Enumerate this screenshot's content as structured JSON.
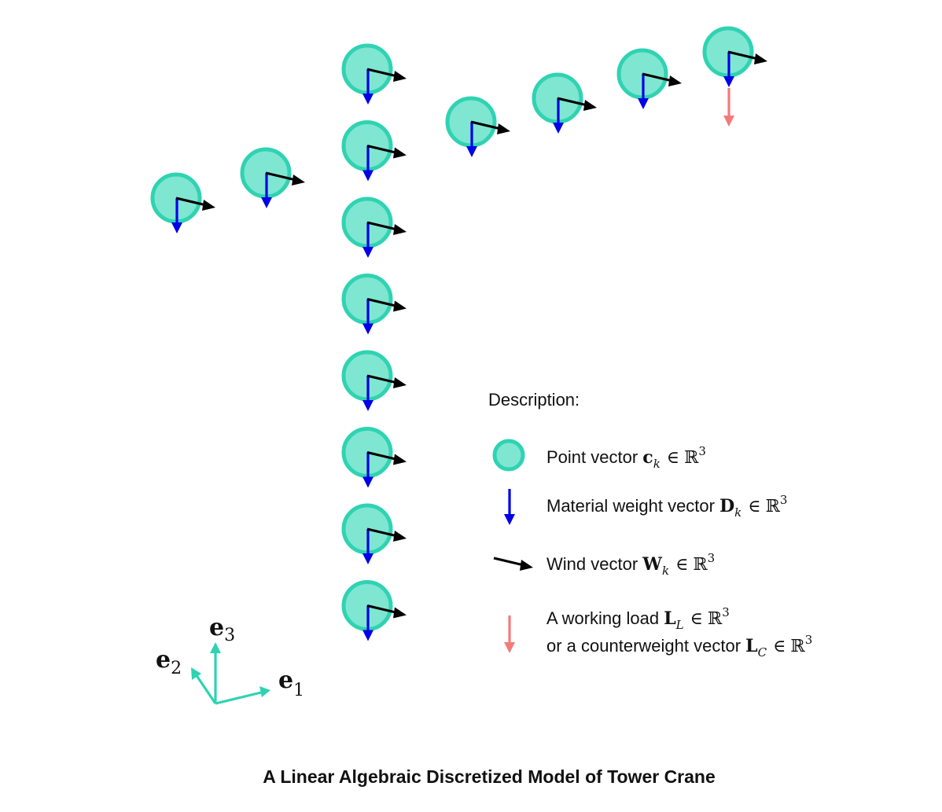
{
  "title": "A Linear Algebraic Discretized Model of Tower Crane",
  "legend": {
    "heading": "Description:",
    "items": [
      {
        "text": "Point vector ",
        "symbol": "c",
        "subscript": "k",
        "member_of": "∈",
        "space": "ℝ",
        "power": "3",
        "icon": "point-circle-icon"
      },
      {
        "text": "Material weight vector ",
        "symbol": "D",
        "subscript": "k",
        "member_of": "∈",
        "space": "ℝ",
        "power": "3",
        "icon": "blue-down-arrow-icon"
      },
      {
        "text": "Wind vector ",
        "symbol": "W",
        "subscript": "k",
        "member_of": "∈",
        "space": "ℝ",
        "power": "3",
        "icon": "black-wind-arrow-icon"
      },
      {
        "text": "A working load ",
        "symbol": "L",
        "subscript": "L",
        "member_of": "∈",
        "space": "ℝ",
        "power": "3",
        "text2": "or a counterweight vector ",
        "symbol2": "L",
        "subscript2": "C",
        "member_of2": "∈",
        "space2": "ℝ",
        "power2": "3",
        "icon": "red-down-arrow-icon"
      }
    ]
  },
  "axes": {
    "e1": {
      "symbol": "e",
      "subscript": "1"
    },
    "e2": {
      "symbol": "e",
      "subscript": "2"
    },
    "e3": {
      "symbol": "e",
      "subscript": "3"
    }
  },
  "colors": {
    "node_fill": "#7fe6d1",
    "node_stroke": "#2fd3b2",
    "material_weight": "#0000e6",
    "wind": "#000000",
    "load": "#f47a7a",
    "axis": "#2fd3b2"
  },
  "structure": {
    "tower_nodes": 8,
    "jib_nodes": 4,
    "counter_jib_nodes": 2,
    "load_at": "jib-end"
  }
}
